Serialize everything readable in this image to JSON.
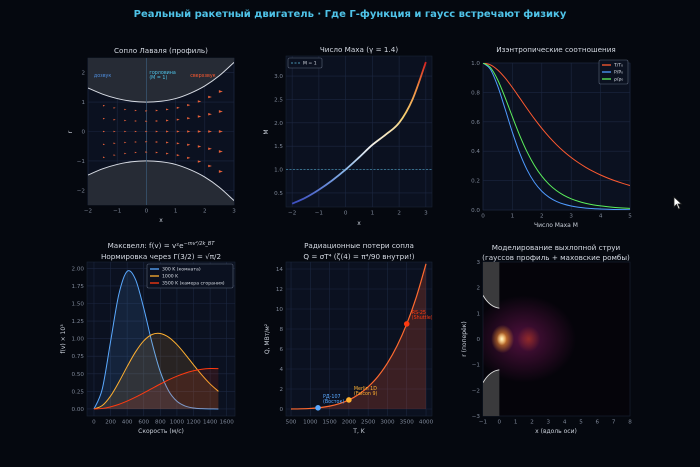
{
  "page_title": "Реальный ракетный двигатель  ·  Где Г-функция и гаусс встречают физику",
  "colors": {
    "title": "#4fc3e8",
    "background": "#05080f",
    "plot_bg": "#0b1120",
    "grid": "#1c2740"
  },
  "chart_data": [
    {
      "id": "nozzle",
      "type": "line",
      "title": "Сопло Лаваля (профиль)",
      "xlabel": "x",
      "ylabel": "r",
      "xlim": [
        -2,
        3
      ],
      "ylim": [
        -2.5,
        2.5
      ],
      "xticks": [
        -2,
        -1,
        0,
        1,
        2,
        3
      ],
      "yticks": [
        -2,
        -1,
        0,
        1,
        2
      ],
      "wall": {
        "x": [
          -2,
          -1.5,
          -1,
          -0.5,
          0,
          0.5,
          1,
          1.5,
          2,
          2.5,
          3
        ],
        "r": [
          1.48,
          1.27,
          1.12,
          1.03,
          1.0,
          1.03,
          1.12,
          1.3,
          1.55,
          1.9,
          2.35
        ]
      },
      "quiver_x": [
        -1.45,
        -1.09,
        -0.72,
        -0.36,
        0,
        0.36,
        0.72,
        1.09,
        1.45,
        1.82,
        2.18,
        2.55
      ],
      "quiver_rows": [
        -0.7,
        -0.35,
        0,
        0.35,
        0.7
      ],
      "annotations": [
        {
          "text": "дозвук",
          "x": -1.5,
          "y": 1.85,
          "color": "#4f8fe0"
        },
        {
          "text": "горловина",
          "text2": "(M = 1)",
          "x": 0.1,
          "y": 1.95,
          "color": "#4fc3e8"
        },
        {
          "text": "сверхзвук",
          "x": 1.5,
          "y": 1.85,
          "color": "#ff5a30"
        }
      ]
    },
    {
      "id": "mach",
      "type": "line",
      "title": "Число Маха (γ = 1.4)",
      "xlabel": "x",
      "ylabel": "M",
      "xlim": [
        -2.23,
        3.23
      ],
      "ylim": [
        0.2,
        3.43
      ],
      "xticks": [
        -2,
        -1,
        0,
        1,
        2,
        3
      ],
      "yticks": [
        0.5,
        1.0,
        1.5,
        2.0,
        2.5,
        3.0
      ],
      "x": [
        -2,
        -1.5,
        -1,
        -0.5,
        0,
        0.5,
        1,
        1.5,
        2,
        2.5,
        3
      ],
      "y": [
        0.27,
        0.4,
        0.57,
        0.77,
        1.0,
        1.26,
        1.53,
        1.75,
        2.0,
        2.5,
        3.3
      ],
      "reference": {
        "label": "M = 1",
        "y": 1.0
      },
      "legend": "top-left"
    },
    {
      "id": "isentropic",
      "type": "line",
      "title": "Изэнтропические соотношения",
      "xlabel": "Число Маха M",
      "ylabel": "",
      "xlim": [
        0,
        5
      ],
      "ylim": [
        0,
        1.0
      ],
      "xticks": [
        0,
        1,
        2,
        3,
        4,
        5
      ],
      "yticks": [
        0.0,
        0.2,
        0.4,
        0.6,
        0.8,
        1.0
      ],
      "x": [
        0,
        0.25,
        0.5,
        0.75,
        1,
        1.25,
        1.5,
        1.75,
        2,
        2.25,
        2.5,
        2.75,
        3,
        3.25,
        3.5,
        3.75,
        4,
        4.25,
        4.5,
        4.75,
        5
      ],
      "series": [
        {
          "name": "T/T₀",
          "color": "#ff5a30",
          "values": [
            1,
            0.9877,
            0.9524,
            0.8989,
            0.8333,
            0.7619,
            0.6897,
            0.6202,
            0.5556,
            0.4969,
            0.4444,
            0.398,
            0.3571,
            0.3213,
            0.2899,
            0.2623,
            0.2381,
            0.2168,
            0.198,
            0.1814,
            0.1667
          ]
        },
        {
          "name": "P/P₀",
          "color": "#4f9bff",
          "values": [
            1,
            0.9576,
            0.843,
            0.6886,
            0.5283,
            0.3861,
            0.2724,
            0.1879,
            0.1278,
            0.0865,
            0.0585,
            0.0398,
            0.0272,
            0.0188,
            0.0131,
            0.0092,
            0.0066,
            0.0047,
            0.0035,
            0.0025,
            0.0019
          ]
        },
        {
          "name": "ρ/ρ₀",
          "color": "#5cf05c",
          "values": [
            1,
            0.9695,
            0.8852,
            0.7661,
            0.6339,
            0.5067,
            0.395,
            0.303,
            0.23,
            0.174,
            0.1317,
            0.0999,
            0.0762,
            0.0585,
            0.0453,
            0.0352,
            0.0277,
            0.0219,
            0.0174,
            0.014,
            0.0113
          ]
        }
      ],
      "legend": "top-right"
    },
    {
      "id": "maxwell",
      "type": "area",
      "title": "Максвелл: f(v) = v²e",
      "title_sup": "−mv²/2k_BT",
      "title2": "Нормировка через Γ(3/2) = √π/2",
      "xlabel": "Скорость (м/с)",
      "ylabel": "f(v) × 10³",
      "xlim": [
        -84,
        1700
      ],
      "ylim": [
        -0.1,
        2.09
      ],
      "xticks": [
        0,
        200,
        400,
        600,
        800,
        1000,
        1200,
        1400,
        1600
      ],
      "yticks": [
        0.0,
        0.25,
        0.5,
        0.75,
        1.0,
        1.25,
        1.5,
        1.75,
        2.0
      ],
      "x": [
        0,
        100,
        200,
        300,
        400,
        500,
        600,
        700,
        800,
        900,
        1000,
        1100,
        1200,
        1300,
        1400,
        1500
      ],
      "series": [
        {
          "name": "300 K (комната)",
          "color": "#5aa9ff",
          "values": [
            0,
            0.284,
            0.959,
            1.631,
            1.957,
            1.844,
            1.432,
            0.94,
            0.528,
            0.257,
            0.109,
            0.041,
            0.013,
            0.004,
            0.001,
            0
          ]
        },
        {
          "name": "1000 K",
          "color": "#ffb030",
          "values": [
            0,
            0.049,
            0.184,
            0.382,
            0.603,
            0.809,
            0.969,
            1.059,
            1.074,
            1.021,
            0.916,
            0.778,
            0.628,
            0.484,
            0.356,
            0.251
          ]
        },
        {
          "name": "3500 K (камера сгорания)",
          "color": "#ff3a10",
          "values": [
            0,
            0.0075,
            0.03,
            0.065,
            0.112,
            0.167,
            0.228,
            0.292,
            0.355,
            0.414,
            0.466,
            0.51,
            0.543,
            0.565,
            0.575,
            0.574
          ]
        }
      ],
      "legend": "top-right"
    },
    {
      "id": "radiation",
      "type": "area",
      "title": "Радиационные потери сопла",
      "title2": "Q = σT⁴ (ζ(4) = π⁴/90 внутри!)",
      "xlabel": "T, K",
      "ylabel": "Q, МВт/м²",
      "xlim": [
        370,
        4155
      ],
      "ylim": [
        -0.7,
        14.7
      ],
      "xticks": [
        500,
        1000,
        1500,
        2000,
        2500,
        3000,
        3500,
        4000
      ],
      "yticks": [
        0,
        2,
        4,
        6,
        8,
        10,
        12,
        14
      ],
      "x": [
        500,
        750,
        1000,
        1250,
        1500,
        1750,
        2000,
        2250,
        2500,
        2750,
        3000,
        3250,
        3500,
        3750,
        4000
      ],
      "y": [
        0.0035,
        0.0179,
        0.0567,
        0.138,
        0.287,
        0.532,
        0.907,
        1.453,
        2.215,
        3.243,
        4.593,
        6.326,
        8.508,
        11.21,
        14.52
      ],
      "line_color": "#ff6a30",
      "points": [
        {
          "label": "РД-107",
          "label2": "(Восток)",
          "x": 1200,
          "y": 0.118,
          "color": "#5aa9ff"
        },
        {
          "label": "Merlin 1D",
          "label2": "(Falcon 9)",
          "x": 2000,
          "y": 0.907,
          "color": "#ffb030"
        },
        {
          "label": "RS-25",
          "label2": "(Shuttle)",
          "x": 3500,
          "y": 8.508,
          "color": "#ff3a10"
        }
      ]
    },
    {
      "id": "plume",
      "type": "heatmap",
      "title": "Моделирование выхлопной струи",
      "title2": "(гауссов профиль + маховские ромбы)",
      "xlabel": "x (вдоль оси)",
      "ylabel": "r (поперёк)",
      "xlim": [
        -1,
        8
      ],
      "ylim": [
        -3,
        3
      ],
      "xticks": [
        -1,
        0,
        1,
        2,
        3,
        4,
        5,
        6,
        7,
        8
      ],
      "yticks": [
        -3,
        -2,
        -1,
        0,
        1,
        2,
        3
      ],
      "sources": [
        {
          "x": 1.5,
          "y": 0,
          "sx": 3.2,
          "sy": 1.7,
          "color": "#6a1450",
          "intensity": 0.75
        },
        {
          "x": 1.8,
          "y": 0,
          "sx": 0.7,
          "sy": 0.5,
          "color": "#c8401a",
          "intensity": 0.55
        },
        {
          "x": 0.2,
          "y": 0,
          "sx": 0.7,
          "sy": 0.55,
          "color": "#ff9a2a",
          "intensity": 1
        },
        {
          "x": 0.15,
          "y": 0,
          "sx": 0.3,
          "sy": 0.25,
          "color": "#fff6c8",
          "intensity": 1
        }
      ],
      "nozzle_lip": {
        "x0": -1,
        "r0": 1.7,
        "x1": 0,
        "r1": 1.2
      }
    }
  ]
}
